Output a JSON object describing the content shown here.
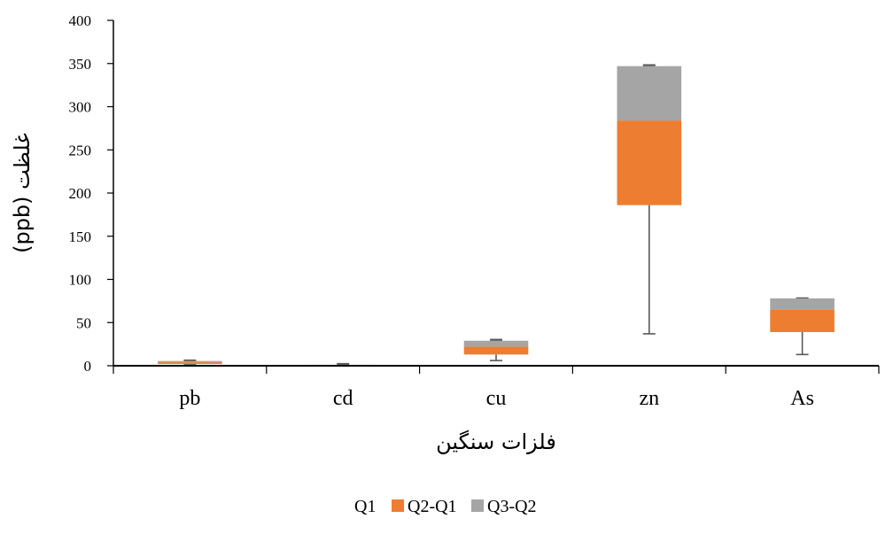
{
  "chart_data": {
    "type": "box",
    "xlabel": "فلزات سنگین",
    "ylabel": "غلظت (ppb)",
    "ylim": [
      0,
      400
    ],
    "yticks": [
      0,
      50,
      100,
      150,
      200,
      250,
      300,
      350,
      400
    ],
    "categories": [
      "pb",
      "cd",
      "cu",
      "zn",
      "As"
    ],
    "series": [
      {
        "name": "Q1",
        "values": [
          2,
          0.5,
          13,
          186,
          39
        ]
      },
      {
        "name": "Q2-Q1",
        "values": [
          2,
          0.3,
          9,
          98,
          26
        ]
      },
      {
        "name": "Q3-Q2",
        "values": [
          1.5,
          0.3,
          7,
          63,
          13
        ]
      }
    ],
    "whisker_min": [
      2,
      0.5,
      6,
      37,
      13
    ],
    "whisker_max": [
      6,
      2,
      30,
      348,
      78
    ],
    "colors": {
      "Q1": "none",
      "Q2-Q1": "#ED7D31",
      "Q3-Q2": "#A5A5A5",
      "whisker": "#595959"
    },
    "legend": {
      "position": "bottom",
      "labels": [
        "Q1",
        "Q2-Q1",
        "Q3-Q2"
      ]
    },
    "grid": false
  }
}
